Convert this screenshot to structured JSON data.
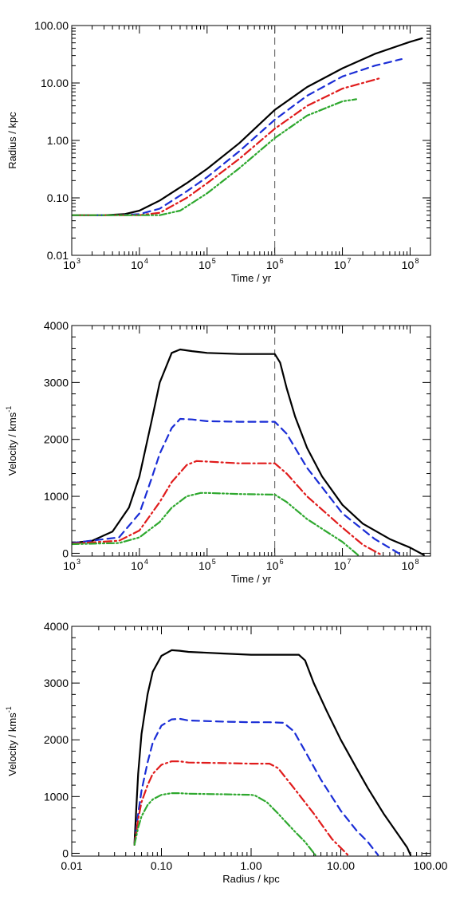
{
  "chart_data": [
    {
      "type": "line",
      "panel": "top",
      "xscale": "log",
      "yscale": "log",
      "xlim": [
        1000,
        200000000
      ],
      "ylim": [
        0.01,
        100
      ],
      "xlabel": "Time / yr",
      "ylabel": "Radius / kpc",
      "xticks": [
        {
          "value": 1000,
          "base": "10",
          "exp": "3"
        },
        {
          "value": 10000,
          "base": "10",
          "exp": "4"
        },
        {
          "value": 100000,
          "base": "10",
          "exp": "5"
        },
        {
          "value": 1000000,
          "base": "10",
          "exp": "6"
        },
        {
          "value": 10000000,
          "base": "10",
          "exp": "7"
        },
        {
          "value": 100000000,
          "base": "10",
          "exp": "8"
        }
      ],
      "yticks": [
        {
          "value": 0.01,
          "label": "0.01"
        },
        {
          "value": 0.1,
          "label": "0.10"
        },
        {
          "value": 1,
          "label": "1.00"
        },
        {
          "value": 10,
          "label": "10.00"
        },
        {
          "value": 100,
          "label": "100.00"
        }
      ],
      "vline_x": 1000000,
      "series": [
        {
          "color": "#000000",
          "dash": "solid",
          "x": [
            1000,
            3000,
            6000,
            10000,
            20000,
            50000,
            100000,
            300000,
            1000000,
            3000000,
            10000000,
            30000000,
            100000000,
            150000000
          ],
          "y": [
            0.05,
            0.05,
            0.052,
            0.06,
            0.09,
            0.18,
            0.32,
            0.9,
            3.4,
            8.5,
            18,
            32,
            52,
            60
          ]
        },
        {
          "color": "#1a2dd6",
          "dash": "dashed",
          "x": [
            1000,
            5000,
            10000,
            20000,
            50000,
            100000,
            300000,
            1000000,
            3000000,
            10000000,
            30000000,
            75000000
          ],
          "y": [
            0.05,
            0.05,
            0.052,
            0.065,
            0.13,
            0.23,
            0.65,
            2.3,
            6,
            13,
            20,
            26
          ]
        },
        {
          "color": "#e01b1b",
          "dash": "dashdot",
          "x": [
            1000,
            5000,
            10000,
            20000,
            50000,
            100000,
            300000,
            1000000,
            3000000,
            10000000,
            35000000
          ],
          "y": [
            0.05,
            0.05,
            0.05,
            0.055,
            0.1,
            0.18,
            0.48,
            1.6,
            4,
            8,
            12
          ]
        },
        {
          "color": "#2ea82e",
          "dash": "dashdotdot",
          "x": [
            1000,
            10000,
            20000,
            40000,
            100000,
            300000,
            1000000,
            3000000,
            10000000,
            16000000
          ],
          "y": [
            0.05,
            0.05,
            0.05,
            0.06,
            0.12,
            0.33,
            1.1,
            2.7,
            4.8,
            5.2
          ]
        }
      ]
    },
    {
      "type": "line",
      "panel": "middle",
      "xscale": "log",
      "yscale": "linear",
      "xlim": [
        1000,
        200000000
      ],
      "ylim": [
        -50,
        4000
      ],
      "xlabel": "Time / yr",
      "ylabel": "Velocity / kms",
      "ylabel_sup": "-1",
      "xticks": [
        {
          "value": 1000,
          "base": "10",
          "exp": "3"
        },
        {
          "value": 10000,
          "base": "10",
          "exp": "4"
        },
        {
          "value": 100000,
          "base": "10",
          "exp": "5"
        },
        {
          "value": 1000000,
          "base": "10",
          "exp": "6"
        },
        {
          "value": 10000000,
          "base": "10",
          "exp": "7"
        },
        {
          "value": 100000000,
          "base": "10",
          "exp": "8"
        }
      ],
      "yticks": [
        {
          "value": 0,
          "label": "0"
        },
        {
          "value": 1000,
          "label": "1000"
        },
        {
          "value": 2000,
          "label": "2000"
        },
        {
          "value": 3000,
          "label": "3000"
        },
        {
          "value": 4000,
          "label": "4000"
        }
      ],
      "vline_x": 1000000,
      "series": [
        {
          "color": "#000000",
          "dash": "solid",
          "x": [
            1000,
            2000,
            4000,
            7000,
            10000,
            15000,
            20000,
            30000,
            40000,
            60000,
            100000,
            300000,
            1000000,
            1200000,
            1500000,
            2000000,
            3000000,
            5000000,
            10000000,
            20000000,
            50000000,
            100000000,
            160000000
          ],
          "y": [
            180,
            220,
            380,
            800,
            1350,
            2300,
            3000,
            3520,
            3580,
            3550,
            3520,
            3500,
            3500,
            3350,
            2900,
            2400,
            1850,
            1350,
            850,
            520,
            250,
            100,
            -30
          ]
        },
        {
          "color": "#1a2dd6",
          "dash": "dashed",
          "x": [
            1000,
            5000,
            10000,
            15000,
            20000,
            30000,
            40000,
            60000,
            100000,
            300000,
            1000000,
            1500000,
            3000000,
            10000000,
            30000000,
            75000000
          ],
          "y": [
            180,
            280,
            700,
            1300,
            1750,
            2200,
            2360,
            2350,
            2320,
            2310,
            2310,
            2100,
            1500,
            700,
            250,
            -30
          ]
        },
        {
          "color": "#e01b1b",
          "dash": "dashdot",
          "x": [
            1000,
            5000,
            10000,
            20000,
            30000,
            50000,
            70000,
            100000,
            300000,
            1000000,
            1500000,
            3000000,
            10000000,
            20000000,
            38000000
          ],
          "y": [
            170,
            220,
            400,
            900,
            1250,
            1550,
            1620,
            1610,
            1580,
            1580,
            1400,
            1000,
            450,
            150,
            -30
          ]
        },
        {
          "color": "#2ea82e",
          "dash": "dashdotdot",
          "x": [
            1000,
            5000,
            10000,
            20000,
            30000,
            50000,
            80000,
            100000,
            300000,
            1000000,
            1500000,
            3000000,
            10000000,
            17000000
          ],
          "y": [
            160,
            180,
            280,
            550,
            800,
            1000,
            1060,
            1060,
            1040,
            1030,
            900,
            600,
            200,
            -30
          ]
        }
      ]
    },
    {
      "type": "line",
      "panel": "bottom",
      "xscale": "log",
      "yscale": "linear",
      "xlim": [
        0.01,
        100
      ],
      "ylim": [
        -50,
        4000
      ],
      "xlabel": "Radius / kpc",
      "ylabel": "Velocity / kms",
      "ylabel_sup": "-1",
      "xticks": [
        {
          "value": 0.01,
          "label": "0.01"
        },
        {
          "value": 0.1,
          "label": "0.10"
        },
        {
          "value": 1,
          "label": "1.00"
        },
        {
          "value": 10,
          "label": "10.00"
        },
        {
          "value": 100,
          "label": "100.00"
        }
      ],
      "yticks": [
        {
          "value": 0,
          "label": "0"
        },
        {
          "value": 1000,
          "label": "1000"
        },
        {
          "value": 2000,
          "label": "2000"
        },
        {
          "value": 3000,
          "label": "3000"
        },
        {
          "value": 4000,
          "label": "4000"
        }
      ],
      "series": [
        {
          "color": "#000000",
          "dash": "solid",
          "x": [
            0.05,
            0.052,
            0.055,
            0.06,
            0.07,
            0.08,
            0.1,
            0.13,
            0.16,
            0.2,
            0.5,
            1,
            2,
            3.4,
            4,
            5,
            7,
            10,
            15,
            20,
            30,
            45,
            55,
            60
          ],
          "y": [
            150,
            700,
            1400,
            2100,
            2800,
            3200,
            3480,
            3580,
            3570,
            3550,
            3520,
            3500,
            3500,
            3500,
            3400,
            3000,
            2500,
            2000,
            1500,
            1150,
            700,
            300,
            100,
            -30
          ]
        },
        {
          "color": "#1a2dd6",
          "dash": "dashed",
          "x": [
            0.05,
            0.055,
            0.06,
            0.07,
            0.08,
            0.1,
            0.13,
            0.16,
            0.2,
            0.5,
            1,
            1.6,
            2.3,
            3,
            4,
            6,
            10,
            15,
            20,
            26
          ],
          "y": [
            150,
            700,
            1100,
            1600,
            1950,
            2250,
            2360,
            2370,
            2340,
            2320,
            2310,
            2310,
            2300,
            2150,
            1800,
            1300,
            750,
            400,
            200,
            -30
          ]
        },
        {
          "color": "#e01b1b",
          "dash": "dashdot",
          "x": [
            0.05,
            0.055,
            0.06,
            0.07,
            0.08,
            0.1,
            0.13,
            0.16,
            0.2,
            0.5,
            1,
            1.6,
            2,
            3,
            5,
            8,
            12
          ],
          "y": [
            150,
            600,
            900,
            1200,
            1400,
            1560,
            1620,
            1620,
            1600,
            1590,
            1580,
            1580,
            1500,
            1150,
            700,
            250,
            -30
          ]
        },
        {
          "color": "#2ea82e",
          "dash": "dashdotdot",
          "x": [
            0.05,
            0.055,
            0.06,
            0.07,
            0.08,
            0.1,
            0.13,
            0.16,
            0.2,
            0.5,
            1,
            1.1,
            1.5,
            2,
            3,
            4,
            5.2
          ],
          "y": [
            150,
            450,
            650,
            850,
            950,
            1030,
            1060,
            1060,
            1050,
            1040,
            1030,
            1020,
            900,
            700,
            400,
            200,
            -30
          ]
        }
      ]
    }
  ]
}
